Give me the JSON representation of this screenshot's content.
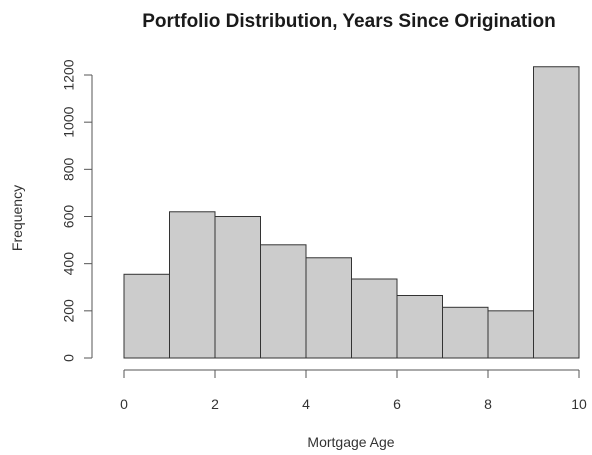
{
  "chart_data": {
    "type": "bar",
    "title": "Portfolio Distribution, Years Since Origination",
    "xlabel": "Mortgage Age",
    "ylabel": "Frequency",
    "bin_edges": [
      0,
      1,
      2,
      3,
      4,
      5,
      6,
      7,
      8,
      9,
      10
    ],
    "values": [
      355,
      620,
      600,
      480,
      425,
      335,
      265,
      215,
      200,
      1235
    ],
    "xlim": [
      0,
      10
    ],
    "ylim": [
      0,
      1200
    ],
    "x_ticks": [
      "0",
      "2",
      "4",
      "6",
      "8",
      "10"
    ],
    "y_ticks": [
      "0",
      "200",
      "400",
      "600",
      "800",
      "1000",
      "1200"
    ],
    "grid": false,
    "legend": "none",
    "bar_color": "#cccccc",
    "bar_edge_color": "#333333"
  }
}
